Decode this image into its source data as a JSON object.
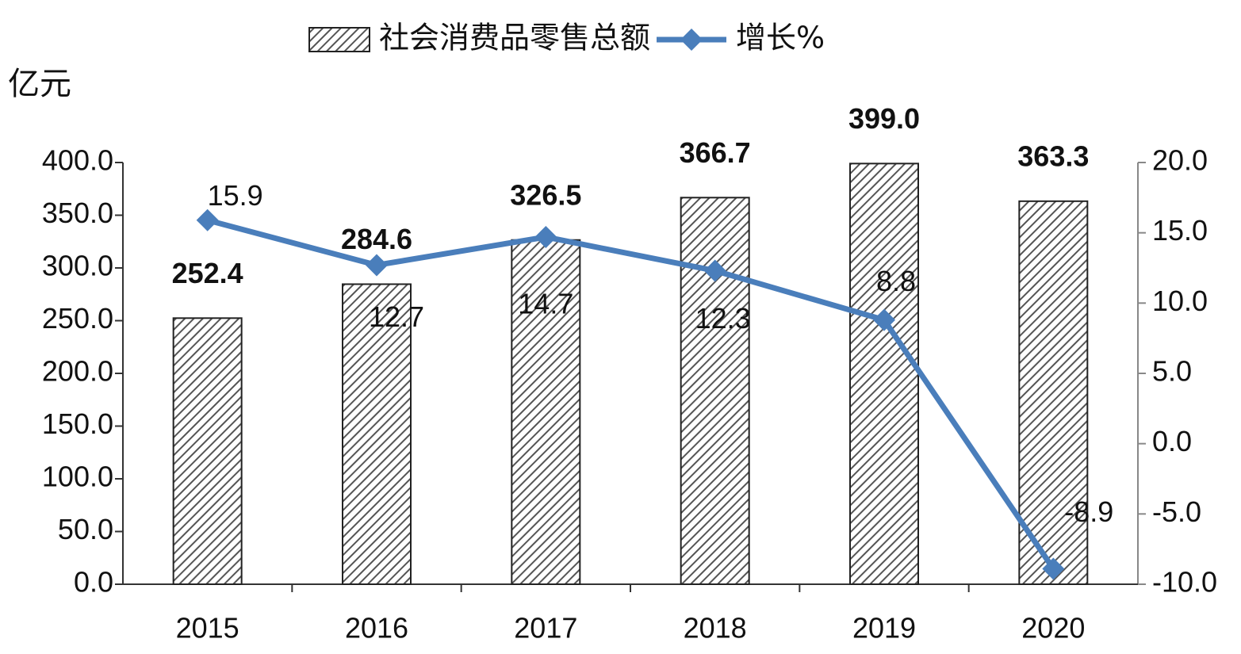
{
  "chart_data": {
    "type": "bar-line",
    "y_label": "亿元",
    "categories": [
      "2015",
      "2016",
      "2017",
      "2018",
      "2019",
      "2020"
    ],
    "series": [
      {
        "name": "社会消费品零售总额",
        "type": "bar",
        "color": "#7f7f7f",
        "values": [
          252.4,
          284.6,
          326.5,
          366.7,
          399.0,
          363.3
        ],
        "value_labels": [
          "252.4",
          "284.6",
          "326.5",
          "366.7",
          "399.0",
          "363.3"
        ]
      },
      {
        "name": "增长%",
        "type": "line",
        "axis": "y2",
        "color": "#4a7ebb",
        "values": [
          15.9,
          12.7,
          14.7,
          12.3,
          8.8,
          -8.9
        ]
      }
    ],
    "ylim": [
      0,
      400
    ],
    "yticks": [
      {
        "value": 0,
        "label": "0.0"
      },
      {
        "value": 50,
        "label": "50.0"
      },
      {
        "value": 100,
        "label": "100.0"
      },
      {
        "value": 150,
        "label": "150.0"
      },
      {
        "value": 200,
        "label": "200.0"
      },
      {
        "value": 250,
        "label": "250.0"
      },
      {
        "value": 300,
        "label": "300.0"
      },
      {
        "value": 350,
        "label": "350.0"
      },
      {
        "value": 400,
        "label": "400.0"
      }
    ],
    "y2lim": [
      -10,
      20
    ],
    "y2ticks": [
      {
        "value": -10,
        "label": "-10.0"
      },
      {
        "value": -5,
        "label": "-5.0"
      },
      {
        "value": 0,
        "label": "0.0"
      },
      {
        "value": 5,
        "label": "5.0"
      },
      {
        "value": 10,
        "label": "10.0"
      },
      {
        "value": 15,
        "label": "15.0"
      },
      {
        "value": 20,
        "label": "20.0"
      }
    ],
    "legend": "top"
  }
}
